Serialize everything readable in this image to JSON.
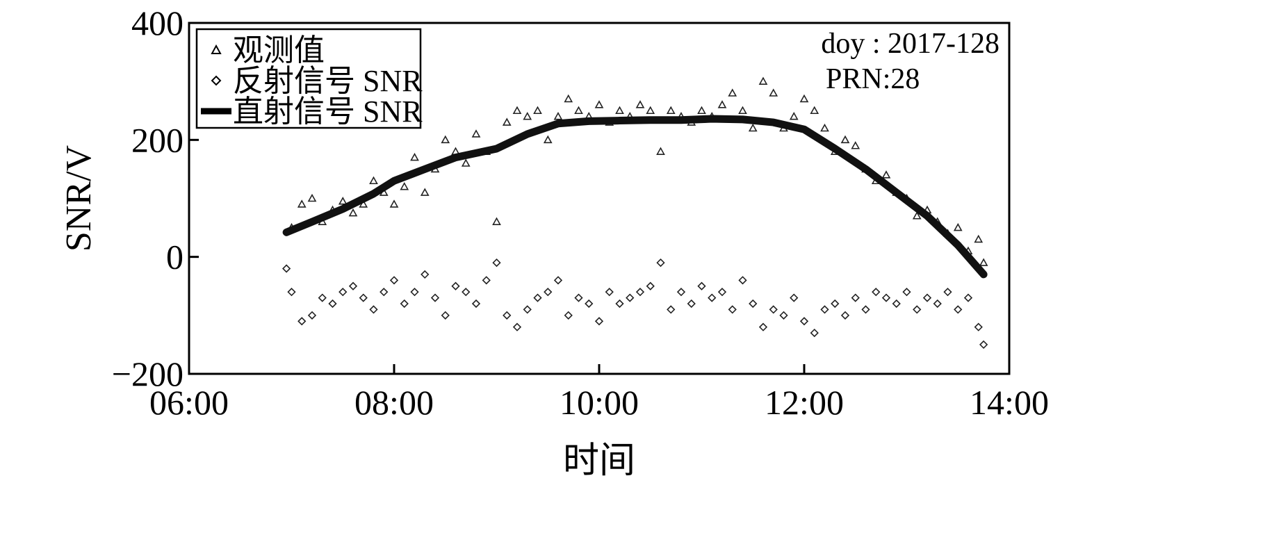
{
  "chart_data": {
    "type": "scatter",
    "title": "",
    "xlabel": "时间",
    "ylabel": "SNR/V",
    "x_unit": "hour",
    "xlim": [
      6,
      14
    ],
    "ylim": [
      -200,
      400
    ],
    "x_tick_values": [
      6,
      8,
      10,
      12,
      14
    ],
    "x_tick_labels": [
      "06:00",
      "08:00",
      "10:00",
      "12:00",
      "14:00"
    ],
    "y_tick_values": [
      -200,
      0,
      200,
      400
    ],
    "y_tick_labels": [
      "−200",
      "0",
      "200",
      "400"
    ],
    "grid": false,
    "legend_position": "top-left",
    "annotations": [
      "doy : 2017-128",
      "PRN:28"
    ],
    "series": [
      {
        "name": "观测值",
        "marker": "triangle",
        "x": [
          7.0,
          7.1,
          7.2,
          7.3,
          7.4,
          7.5,
          7.6,
          7.7,
          7.8,
          7.9,
          8.0,
          8.1,
          8.2,
          8.3,
          8.4,
          8.5,
          8.6,
          8.7,
          8.8,
          8.9,
          9.0,
          9.1,
          9.2,
          9.3,
          9.4,
          9.5,
          9.6,
          9.7,
          9.8,
          9.9,
          10.0,
          10.1,
          10.2,
          10.3,
          10.4,
          10.5,
          10.6,
          10.7,
          10.8,
          10.9,
          11.0,
          11.1,
          11.2,
          11.3,
          11.4,
          11.5,
          11.6,
          11.7,
          11.8,
          11.9,
          12.0,
          12.1,
          12.2,
          12.3,
          12.4,
          12.5,
          12.6,
          12.7,
          12.8,
          12.9,
          13.0,
          13.1,
          13.2,
          13.3,
          13.4,
          13.5,
          13.6,
          13.7,
          13.75
        ],
        "y": [
          50,
          90,
          100,
          60,
          80,
          95,
          75,
          90,
          130,
          110,
          90,
          120,
          170,
          110,
          150,
          200,
          180,
          160,
          210,
          180,
          60,
          230,
          250,
          240,
          250,
          200,
          240,
          270,
          250,
          240,
          260,
          230,
          250,
          240,
          260,
          250,
          180,
          250,
          240,
          230,
          250,
          240,
          260,
          280,
          250,
          220,
          300,
          280,
          220,
          240,
          270,
          250,
          220,
          180,
          200,
          190,
          150,
          130,
          140,
          110,
          100,
          70,
          80,
          60,
          40,
          50,
          10,
          30,
          -10
        ]
      },
      {
        "name": "反射信号 SNR",
        "marker": "diamond",
        "x": [
          6.95,
          7.0,
          7.1,
          7.2,
          7.3,
          7.4,
          7.5,
          7.6,
          7.7,
          7.8,
          7.9,
          8.0,
          8.1,
          8.2,
          8.3,
          8.4,
          8.5,
          8.6,
          8.7,
          8.8,
          8.9,
          9.0,
          9.1,
          9.2,
          9.3,
          9.4,
          9.5,
          9.6,
          9.7,
          9.8,
          9.9,
          10.0,
          10.1,
          10.2,
          10.3,
          10.4,
          10.5,
          10.6,
          10.7,
          10.8,
          10.9,
          11.0,
          11.1,
          11.2,
          11.3,
          11.4,
          11.5,
          11.6,
          11.7,
          11.8,
          11.9,
          12.0,
          12.1,
          12.2,
          12.3,
          12.4,
          12.5,
          12.6,
          12.7,
          12.8,
          12.9,
          13.0,
          13.1,
          13.2,
          13.3,
          13.4,
          13.5,
          13.6,
          13.7,
          13.75
        ],
        "y": [
          -20,
          -60,
          -110,
          -100,
          -70,
          -80,
          -60,
          -50,
          -70,
          -90,
          -60,
          -40,
          -80,
          -60,
          -30,
          -70,
          -100,
          -50,
          -60,
          -80,
          -40,
          -10,
          -100,
          -120,
          -90,
          -70,
          -60,
          -40,
          -100,
          -70,
          -80,
          -110,
          -60,
          -80,
          -70,
          -60,
          -50,
          -10,
          -90,
          -60,
          -80,
          -50,
          -70,
          -60,
          -90,
          -40,
          -80,
          -120,
          -90,
          -100,
          -70,
          -110,
          -130,
          -90,
          -80,
          -100,
          -70,
          -90,
          -60,
          -70,
          -80,
          -60,
          -90,
          -70,
          -80,
          -60,
          -90,
          -70,
          -120,
          -150
        ]
      },
      {
        "name": "直射信号 SNR",
        "marker": "line",
        "x": [
          6.95,
          7.2,
          7.5,
          7.8,
          8.0,
          8.3,
          8.6,
          9.0,
          9.3,
          9.6,
          9.9,
          10.2,
          10.5,
          10.8,
          11.1,
          11.4,
          11.7,
          12.0,
          12.3,
          12.6,
          12.9,
          13.2,
          13.5,
          13.75
        ],
        "y": [
          42,
          60,
          82,
          108,
          130,
          150,
          170,
          185,
          210,
          228,
          232,
          233,
          234,
          234,
          236,
          235,
          230,
          218,
          185,
          150,
          110,
          70,
          20,
          -30
        ]
      }
    ]
  }
}
